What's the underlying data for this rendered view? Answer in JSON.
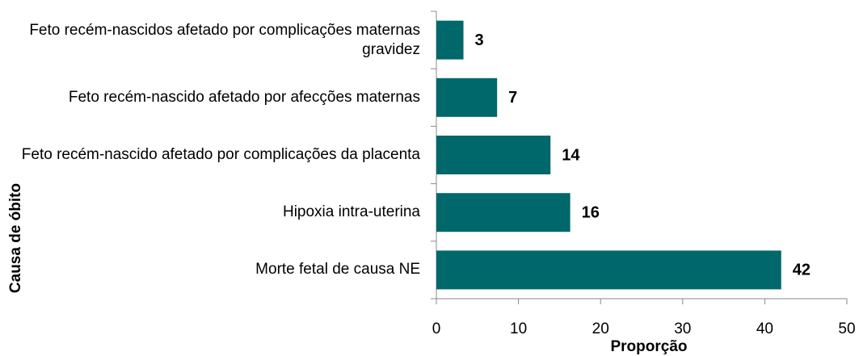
{
  "chart_data": {
    "type": "barh",
    "categories": [
      "Feto recém-nascidos afetado por complicações maternas gravidez",
      "Feto recém-nascido afetado por afecções maternas",
      "Feto recém-nascido afetado por complicações da placenta",
      "Hipoxia intra-uterina",
      "Morte fetal de causa NE"
    ],
    "values": [
      3.3,
      7.4,
      13.9,
      16.3,
      42
    ],
    "value_labels": [
      "3",
      "7",
      "14",
      "16",
      "42"
    ],
    "color": "#00676a",
    "xlabel": "Proporção",
    "ylabel": "Causa de óbito",
    "xlim": [
      0,
      50
    ],
    "xticks": [
      0,
      10,
      20,
      30,
      40,
      50
    ]
  }
}
